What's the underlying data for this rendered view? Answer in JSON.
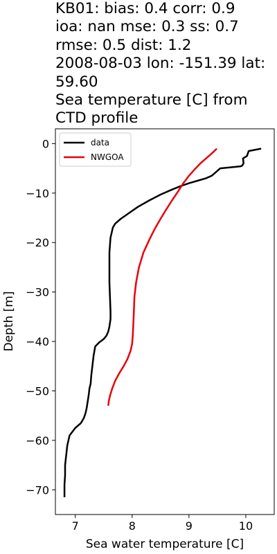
{
  "title_lines": [
    "KB01: bias: 0.4  corr: 0.9",
    "ioa: nan  mse: 0.3  ss: 0.7",
    "rmse: 0.5  dist: 1.2",
    "2008-08-03 lon: -151.39 lat:",
    "59.60",
    "Sea temperature [C] from",
    "CTD profile"
  ],
  "chart_data": {
    "type": "line",
    "xlabel": "Sea water temperature [C]",
    "ylabel": "Depth [m]",
    "xlim": [
      6.65,
      10.5
    ],
    "ylim": [
      -75,
      3
    ],
    "xticks": [
      7,
      8,
      9,
      10
    ],
    "yticks": [
      0,
      -10,
      -20,
      -30,
      -40,
      -50,
      -60,
      -70
    ],
    "grid": false,
    "legend": "upper-left",
    "series": [
      {
        "name": "data",
        "color": "#000000",
        "x": [
          10.27,
          10.05,
          10.02,
          9.95,
          9.96,
          9.93,
          9.9,
          9.55,
          9.5,
          9.45,
          9.4,
          9.3,
          9.15,
          9.0,
          8.85,
          8.7,
          8.5,
          8.3,
          8.1,
          7.95,
          7.8,
          7.7,
          7.66,
          7.64,
          7.62,
          7.61,
          7.6,
          7.6,
          7.6,
          7.61,
          7.62,
          7.62,
          7.6,
          7.58,
          7.55,
          7.5,
          7.42,
          7.35,
          7.32,
          7.3,
          7.28,
          7.27,
          7.25,
          7.24,
          7.22,
          7.2,
          7.18,
          7.15,
          7.1,
          7.0,
          6.9,
          6.86,
          6.84,
          6.82,
          6.82,
          6.81,
          6.81
        ],
        "y": [
          -1.0,
          -1.5,
          -2.5,
          -3.0,
          -4.0,
          -4.5,
          -4.6,
          -5.0,
          -5.5,
          -6.0,
          -6.5,
          -7.0,
          -7.5,
          -8.0,
          -8.6,
          -9.3,
          -10.3,
          -11.5,
          -12.8,
          -14.0,
          -15.2,
          -16.2,
          -17.0,
          -18.0,
          -19.0,
          -20.5,
          -22.0,
          -25.0,
          -28.0,
          -31.0,
          -34.0,
          -35.5,
          -37.0,
          -38.0,
          -38.8,
          -39.5,
          -40.2,
          -41.0,
          -43.0,
          -45.0,
          -47.0,
          -48.5,
          -49.5,
          -50.5,
          -52.0,
          -53.5,
          -54.5,
          -55.5,
          -56.5,
          -57.5,
          -59.0,
          -61.0,
          -63.0,
          -65.0,
          -67.0,
          -69.0,
          -71.5
        ]
      },
      {
        "name": "NWGOA",
        "color": "#e8000b",
        "x": [
          9.49,
          9.4,
          9.3,
          9.2,
          9.1,
          9.0,
          8.9,
          8.8,
          8.7,
          8.6,
          8.5,
          8.4,
          8.3,
          8.2,
          8.12,
          8.07,
          8.04,
          8.03,
          8.02,
          8.01,
          8.0,
          7.97,
          7.92,
          7.85,
          7.77,
          7.7,
          7.65,
          7.61,
          7.59,
          7.58
        ],
        "y": [
          -1.0,
          -2.0,
          -3.0,
          -4.0,
          -5.2,
          -6.5,
          -8.0,
          -9.8,
          -11.5,
          -13.3,
          -15.2,
          -17.2,
          -19.5,
          -22.0,
          -25.0,
          -28.0,
          -31.0,
          -34.0,
          -37.0,
          -39.0,
          -40.5,
          -42.0,
          -43.5,
          -45.0,
          -46.5,
          -48.0,
          -49.5,
          -51.0,
          -52.0,
          -53.0
        ]
      }
    ]
  }
}
